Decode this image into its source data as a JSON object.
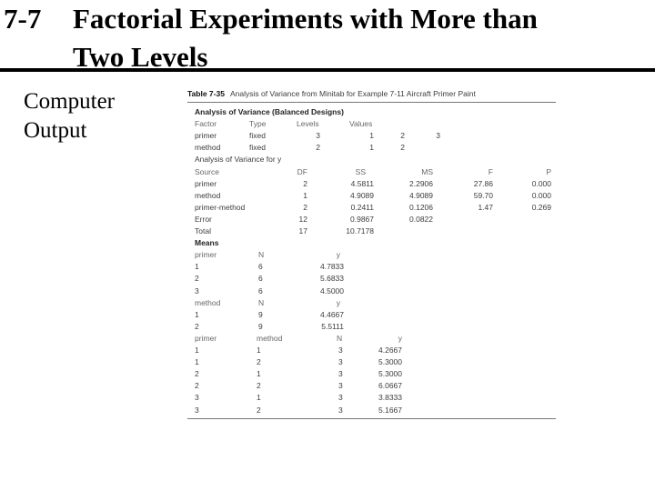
{
  "slide": {
    "number": "7-7",
    "title_line1": "Factorial Experiments with More than",
    "title_line2": "Two Levels",
    "side_label_line1": "Computer",
    "side_label_line2": "Output"
  },
  "table": {
    "label": "Table 7-35",
    "caption": "Analysis of Variance from Minitab for Example 7-11 Aircraft Primer Paint",
    "anova_title": "Analysis of Variance (Balanced Designs)",
    "factor_header": [
      "Factor",
      "Type",
      "Levels",
      "Values"
    ],
    "factors": [
      {
        "name": "primer",
        "type": "fixed",
        "levels": "3",
        "values": [
          "1",
          "2",
          "3"
        ]
      },
      {
        "name": "method",
        "type": "fixed",
        "levels": "2",
        "values": [
          "1",
          "2"
        ]
      }
    ],
    "anova_for": "Analysis of Variance for y",
    "anova_header": [
      "Source",
      "DF",
      "SS",
      "MS",
      "F",
      "P"
    ],
    "anova_rows": [
      [
        "primer",
        "2",
        "4.5811",
        "2.2906",
        "27.86",
        "0.000"
      ],
      [
        "method",
        "1",
        "4.9089",
        "4.9089",
        "59.70",
        "0.000"
      ],
      [
        "primer-method",
        "2",
        "0.2411",
        "0.1206",
        "1.47",
        "0.269"
      ],
      [
        "Error",
        "12",
        "0.9867",
        "0.0822",
        "",
        ""
      ],
      [
        "Total",
        "17",
        "10.7178",
        "",
        "",
        ""
      ]
    ],
    "means_title": "Means",
    "primer_means_header": [
      "primer",
      "N",
      "y"
    ],
    "primer_means": [
      [
        "1",
        "6",
        "4.7833"
      ],
      [
        "2",
        "6",
        "5.6833"
      ],
      [
        "3",
        "6",
        "4.5000"
      ]
    ],
    "method_means_header": [
      "method",
      "N",
      "y"
    ],
    "method_means": [
      [
        "1",
        "9",
        "4.4667"
      ],
      [
        "2",
        "9",
        "5.5111"
      ]
    ],
    "combo_means_header": [
      "primer",
      "method",
      "N",
      "y"
    ],
    "combo_means": [
      [
        "1",
        "1",
        "3",
        "4.2667"
      ],
      [
        "1",
        "2",
        "3",
        "5.3000"
      ],
      [
        "2",
        "1",
        "3",
        "5.3000"
      ],
      [
        "2",
        "2",
        "3",
        "6.0667"
      ],
      [
        "3",
        "1",
        "3",
        "3.8333"
      ],
      [
        "3",
        "2",
        "3",
        "5.1667"
      ]
    ]
  }
}
